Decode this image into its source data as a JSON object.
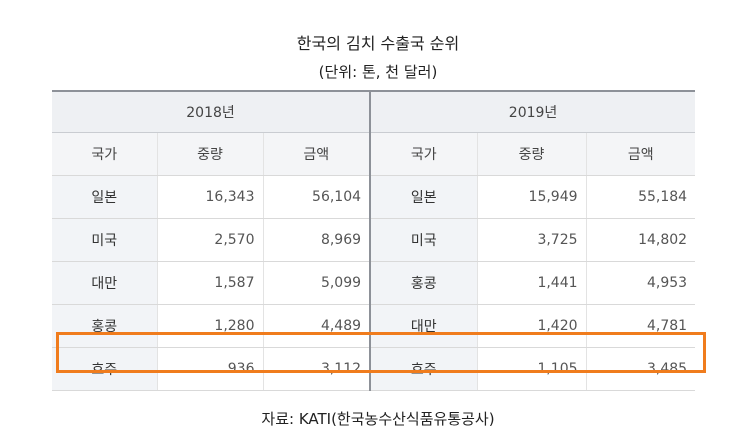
{
  "title": "한국의 김치 수출국 순위",
  "unit": "(단위: 톤, 천 달러)",
  "source": "자료: KATI(한국농수산식품유통공사)",
  "highlight_color": "#f07c1d",
  "table": {
    "years": [
      "2018년",
      "2019년"
    ],
    "columns": [
      "국가",
      "중량",
      "금액"
    ],
    "rows": [
      {
        "y2018": {
          "country": "일본",
          "weight": "16,343",
          "amount": "56,104"
        },
        "y2019": {
          "country": "일본",
          "weight": "15,949",
          "amount": "55,184"
        }
      },
      {
        "y2018": {
          "country": "미국",
          "weight": "2,570",
          "amount": "8,969"
        },
        "y2019": {
          "country": "미국",
          "weight": "3,725",
          "amount": "14,802"
        }
      },
      {
        "y2018": {
          "country": "대만",
          "weight": "1,587",
          "amount": "5,099"
        },
        "y2019": {
          "country": "홍콩",
          "weight": "1,441",
          "amount": "4,953"
        }
      },
      {
        "y2018": {
          "country": "홍콩",
          "weight": "1,280",
          "amount": "4,489"
        },
        "y2019": {
          "country": "대만",
          "weight": "1,420",
          "amount": "4,781"
        }
      },
      {
        "y2018": {
          "country": "호주",
          "weight": "936",
          "amount": "3,112"
        },
        "y2019": {
          "country": "호주",
          "weight": "1,105",
          "amount": "3,485"
        }
      }
    ],
    "highlighted_row": 4
  }
}
